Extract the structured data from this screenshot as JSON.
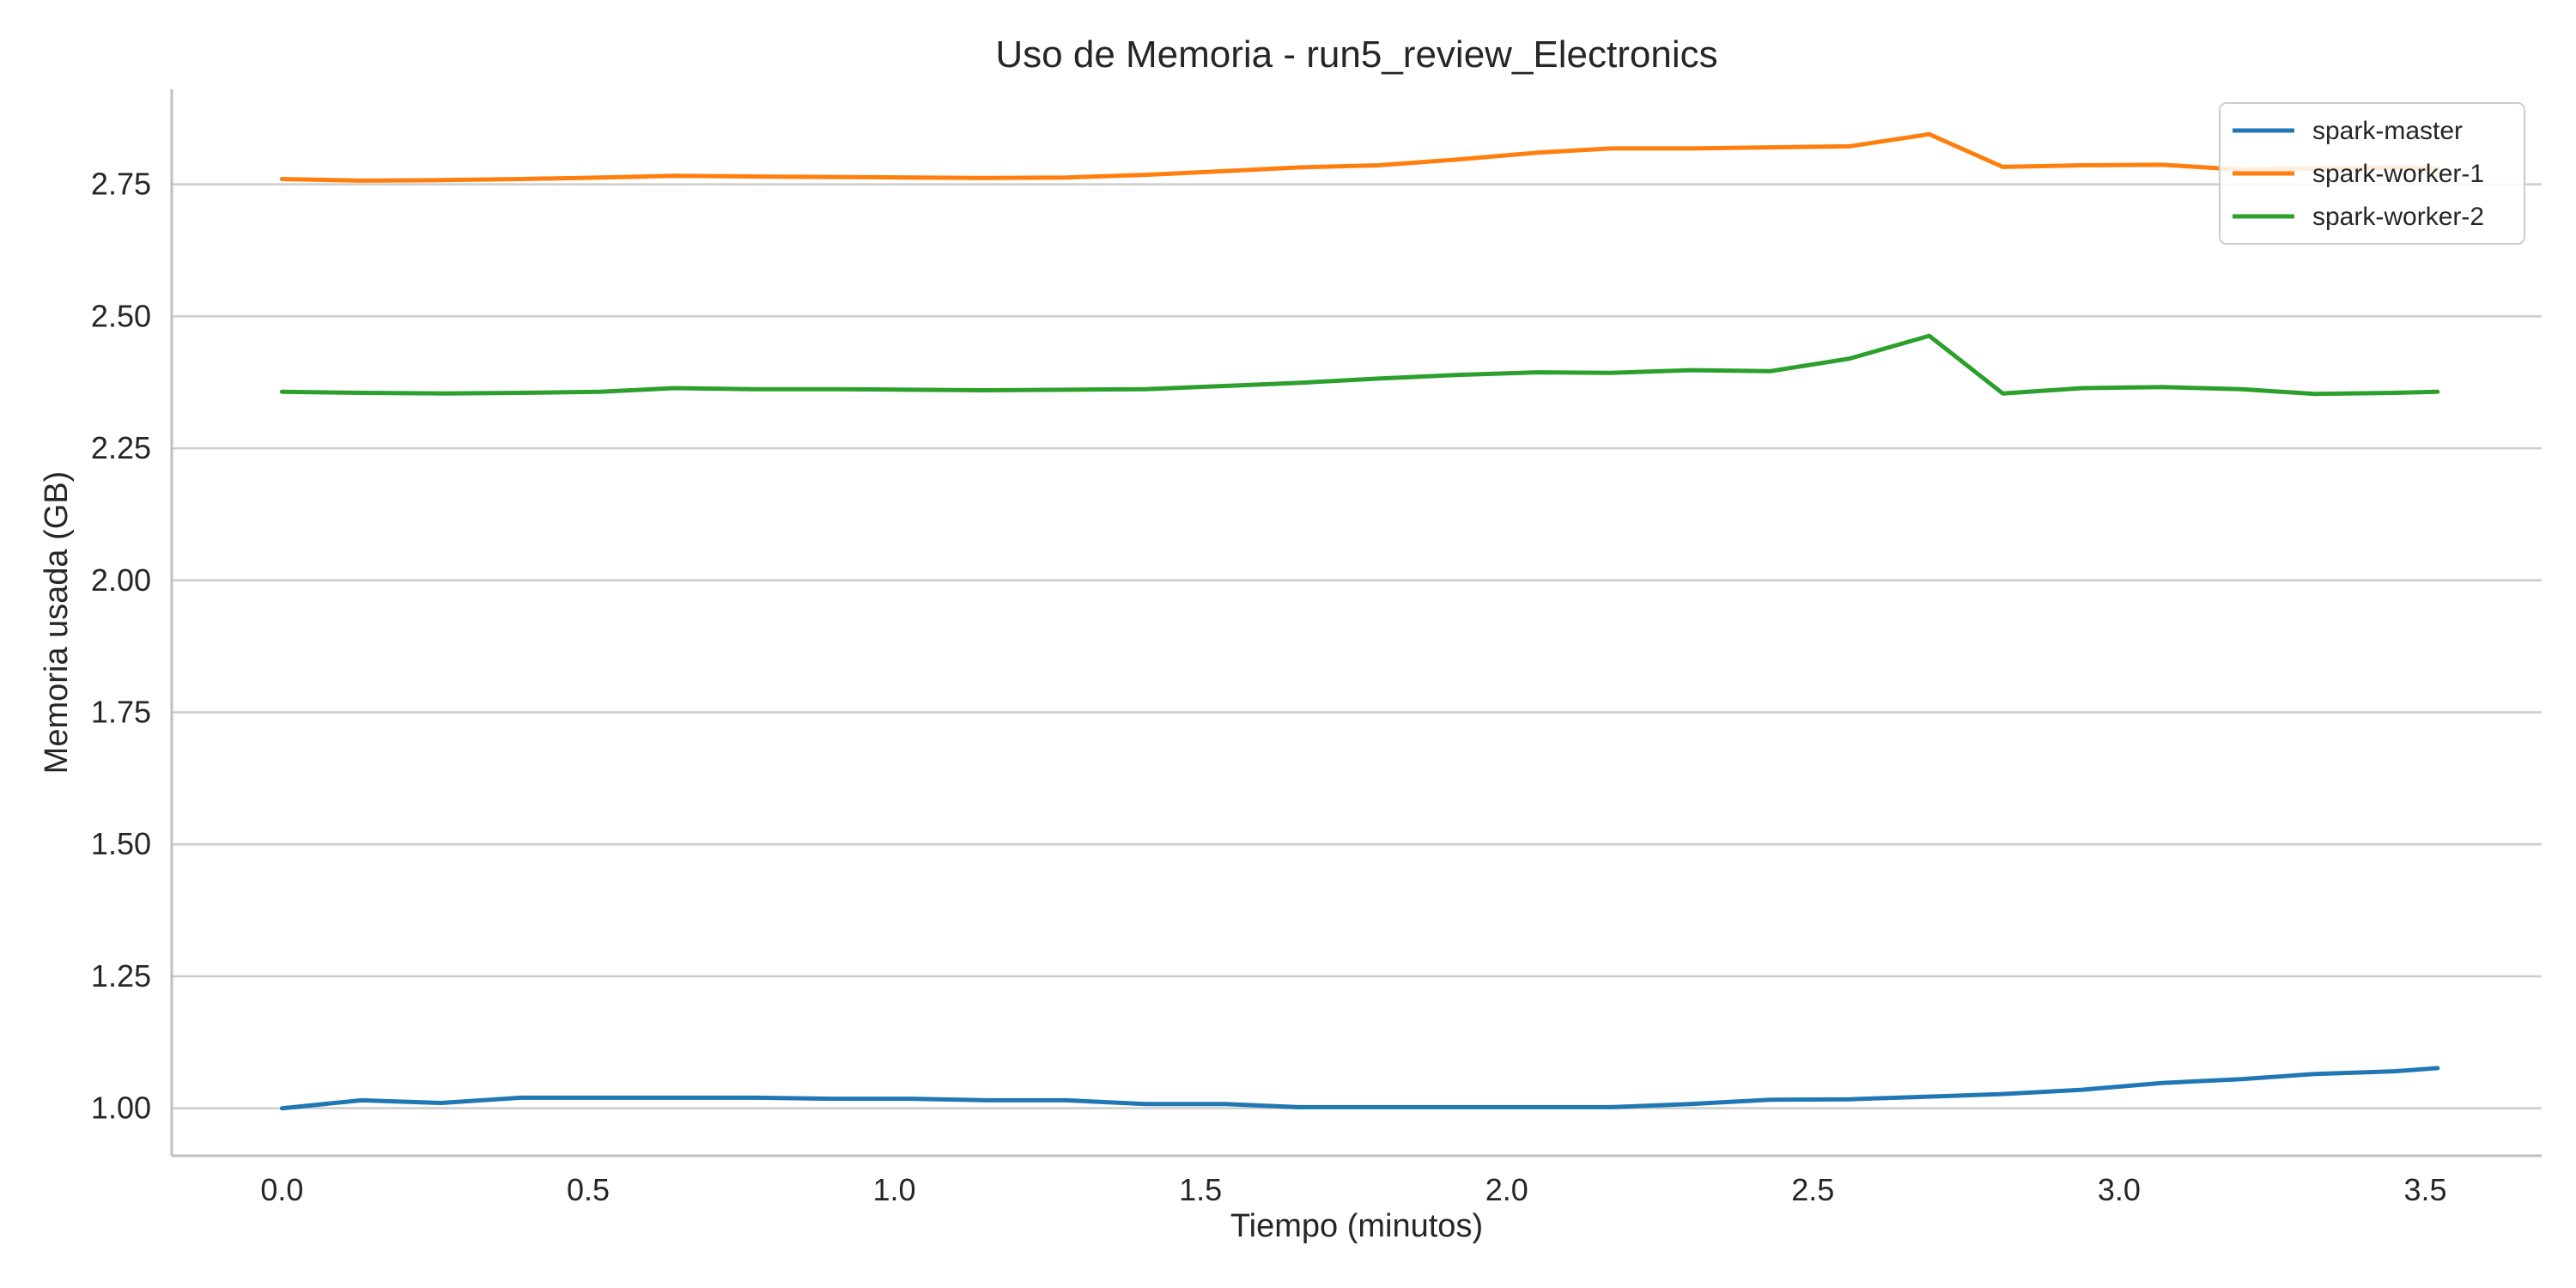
{
  "chart_data": {
    "type": "line",
    "title": "Uso de Memoria - run5_review_Electronics",
    "xlabel": "Tiempo (minutos)",
    "ylabel": "Memoria usada (GB)",
    "xlim": [
      -0.18,
      3.69
    ],
    "ylim": [
      0.91,
      2.93
    ],
    "xticks": [
      0.0,
      0.5,
      1.0,
      1.5,
      2.0,
      2.5,
      3.0,
      3.5
    ],
    "xtick_labels": [
      "0.0",
      "0.5",
      "1.0",
      "1.5",
      "2.0",
      "2.5",
      "3.0",
      "3.5"
    ],
    "yticks": [
      1.0,
      1.25,
      1.5,
      1.75,
      2.0,
      2.25,
      2.5,
      2.75
    ],
    "ytick_labels": [
      "1.00",
      "1.25",
      "1.50",
      "1.75",
      "2.00",
      "2.25",
      "2.50",
      "2.75"
    ],
    "grid": "horizontal",
    "legend_position": "top-right",
    "x": [
      0.0,
      0.13,
      0.26,
      0.39,
      0.52,
      0.64,
      0.77,
      0.9,
      1.03,
      1.15,
      1.28,
      1.41,
      1.54,
      1.66,
      1.79,
      1.92,
      2.05,
      2.17,
      2.3,
      2.43,
      2.56,
      2.69,
      2.81,
      2.94,
      3.07,
      3.2,
      3.32,
      3.45,
      3.52
    ],
    "series": [
      {
        "name": "spark-master",
        "color": "#1f77b4",
        "values": [
          1.0,
          1.015,
          1.01,
          1.02,
          1.02,
          1.02,
          1.02,
          1.018,
          1.018,
          1.015,
          1.015,
          1.008,
          1.008,
          1.002,
          1.002,
          1.002,
          1.002,
          1.002,
          1.008,
          1.016,
          1.017,
          1.022,
          1.027,
          1.035,
          1.048,
          1.055,
          1.065,
          1.07,
          1.076
        ]
      },
      {
        "name": "spark-worker-1",
        "color": "#ff7f0e",
        "values": [
          2.76,
          2.757,
          2.758,
          2.76,
          2.763,
          2.766,
          2.765,
          2.764,
          2.763,
          2.762,
          2.763,
          2.768,
          2.775,
          2.782,
          2.786,
          2.797,
          2.81,
          2.818,
          2.818,
          2.82,
          2.822,
          2.845,
          2.783,
          2.786,
          2.787,
          2.778,
          2.78,
          2.782,
          2.78
        ]
      },
      {
        "name": "spark-worker-2",
        "color": "#2ca02c",
        "values": [
          2.357,
          2.355,
          2.354,
          2.355,
          2.357,
          2.364,
          2.362,
          2.362,
          2.361,
          2.36,
          2.361,
          2.362,
          2.368,
          2.374,
          2.382,
          2.389,
          2.394,
          2.393,
          2.398,
          2.396,
          2.42,
          2.463,
          2.354,
          2.364,
          2.366,
          2.362,
          2.353,
          2.355,
          2.357
        ]
      }
    ]
  }
}
